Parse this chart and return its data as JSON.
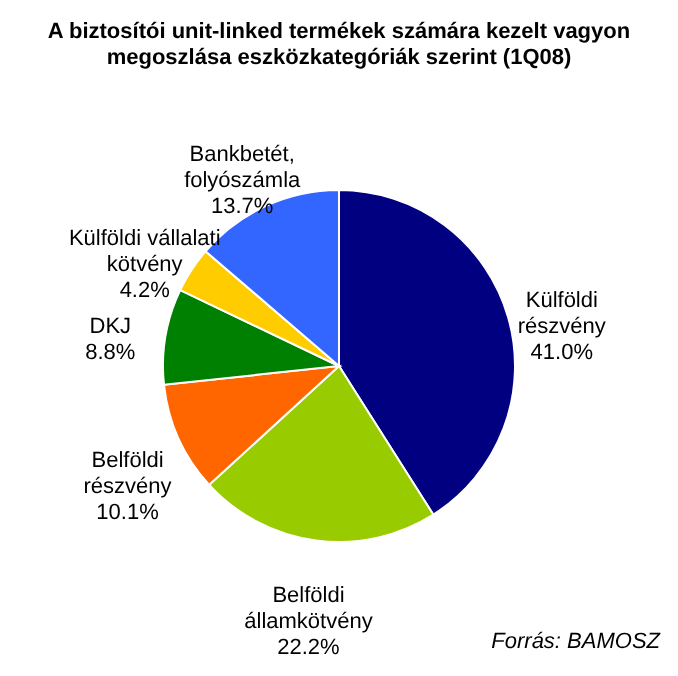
{
  "chart_data": {
    "type": "pie",
    "title": [
      "A biztosítói unit-linked termékek számára kezelt vagyon",
      "megoszlása eszközkategóriák szerint (1Q08)"
    ],
    "categories": [
      "Külföldi\nrészvény",
      "Belföldi\nállamkötvény",
      "Belföldi\nrészvény",
      "DKJ",
      "Külföldi vállalati\nkötvény",
      "Bankbetét,\nfolyószámla"
    ],
    "values": [
      41.0,
      22.2,
      10.1,
      8.8,
      4.2,
      13.7
    ],
    "colors": [
      "#000080",
      "#99cc00",
      "#ff6600",
      "#008000",
      "#ffcc00",
      "#3366ff"
    ],
    "value_labels": [
      "41.0%",
      "22.2%",
      "10.1%",
      "8.8%",
      "4.2%",
      "13.7%"
    ],
    "annotations": [
      "Forrás: BAMOSZ"
    ]
  }
}
